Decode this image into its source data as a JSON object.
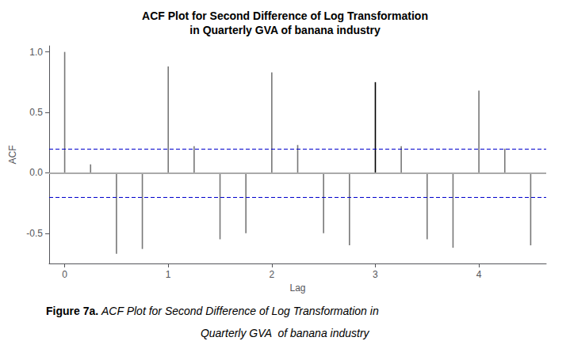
{
  "chart_data": {
    "type": "stem",
    "title": "ACF Plot for Second Difference of Log Transformation\nin Quarterly GVA of banana industry",
    "x_label": "Lag",
    "y_label": "ACF",
    "x": [
      0,
      0.25,
      0.5,
      0.75,
      1.0,
      1.25,
      1.5,
      1.75,
      2.0,
      2.25,
      2.5,
      2.75,
      3.0,
      3.25,
      3.5,
      3.75,
      4.0,
      4.25,
      4.5
    ],
    "values": [
      1.0,
      0.07,
      -0.67,
      -0.63,
      0.88,
      0.22,
      -0.55,
      -0.5,
      0.83,
      0.23,
      -0.5,
      -0.6,
      0.75,
      0.22,
      -0.55,
      -0.62,
      0.68,
      0.2,
      -0.6
    ],
    "colors": [
      "#777777",
      "#777777",
      "#777777",
      "#777777",
      "#777777",
      "#777777",
      "#777777",
      "#777777",
      "#777777",
      "#777777",
      "#777777",
      "#777777",
      "#000000",
      "#777777",
      "#777777",
      "#777777",
      "#777777",
      "#777777",
      "#777777"
    ],
    "hlines": [
      {
        "value": 0,
        "color": "#aaaaaa",
        "line_style": "solid"
      },
      {
        "value": 0.2,
        "color": "#0000CC",
        "line_style": "dashed"
      },
      {
        "value": -0.2,
        "color": "#0000CC",
        "line_style": "dashed"
      }
    ],
    "xlim": [
      -0.15,
      4.65
    ],
    "xticks": [
      0,
      1,
      2,
      3,
      4
    ],
    "ylim": [
      -0.75,
      1.05
    ],
    "yticks": [
      -0.5,
      {
        "value": 0,
        "label": "0.0"
      },
      0.5,
      {
        "value": 1,
        "label": "1.0"
      }
    ],
    "grid": false,
    "annotations": [
      "Figure 7a.",
      "ACF Plot for Second Difference of Log Transformation in",
      "Quarterly GVA  of banana industry"
    ]
  }
}
